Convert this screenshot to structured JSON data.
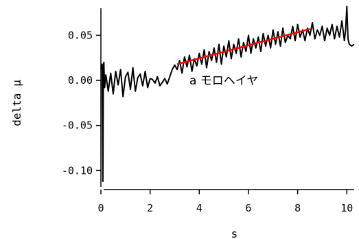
{
  "chart_data": {
    "type": "line",
    "title": "",
    "xlabel": "s",
    "ylabel": "delta μ",
    "xlim": [
      0,
      10.3
    ],
    "ylim": [
      -0.115,
      0.08
    ],
    "x_ticks": [
      0,
      2,
      4,
      6,
      8,
      10
    ],
    "x_tick_labels": [
      "0",
      "2",
      "4",
      "6",
      "8",
      "10"
    ],
    "y_ticks": [
      -0.1,
      -0.05,
      0.0,
      0.05
    ],
    "y_tick_labels": [
      "-0.10",
      "-0.05",
      "0.00",
      "0.05"
    ],
    "grid": false,
    "series": [
      {
        "color": "#000000",
        "x": [
          0.0,
          0.05,
          0.08,
          0.1,
          0.12,
          0.15,
          0.2,
          0.3,
          0.4,
          0.5,
          0.6,
          0.7,
          0.8,
          0.9,
          1.0,
          1.1,
          1.2,
          1.3,
          1.4,
          1.5,
          1.6,
          1.7,
          1.8,
          1.9,
          2.0,
          2.1,
          2.2,
          2.3,
          2.4,
          2.5,
          2.6,
          2.7,
          2.8,
          2.9,
          3.0,
          3.1,
          3.2,
          3.3,
          3.4,
          3.5,
          3.6,
          3.7,
          3.8,
          3.9,
          4.0,
          4.1,
          4.2,
          4.3,
          4.4,
          4.5,
          4.6,
          4.7,
          4.8,
          4.9,
          5.0,
          5.1,
          5.2,
          5.3,
          5.4,
          5.5,
          5.6,
          5.7,
          5.8,
          5.9,
          6.0,
          6.1,
          6.2,
          6.3,
          6.4,
          6.5,
          6.6,
          6.7,
          6.8,
          6.9,
          7.0,
          7.1,
          7.2,
          7.3,
          7.4,
          7.5,
          7.6,
          7.7,
          7.8,
          7.9,
          8.0,
          8.1,
          8.2,
          8.3,
          8.4,
          8.5,
          8.6,
          8.7,
          8.8,
          8.9,
          9.0,
          9.1,
          9.2,
          9.3,
          9.4,
          9.5,
          9.6,
          9.7,
          9.8,
          9.9,
          9.95,
          10.0,
          10.05,
          10.1,
          10.2,
          10.3
        ],
        "values": [
          0.012,
          0.018,
          -0.112,
          0.015,
          0.02,
          -0.008,
          0.006,
          -0.012,
          0.008,
          -0.015,
          0.01,
          -0.005,
          0.012,
          -0.018,
          0.004,
          0.009,
          -0.01,
          0.014,
          -0.012,
          0.003,
          0.007,
          -0.006,
          0.01,
          -0.008,
          0.002,
          0.001,
          -0.003,
          0.004,
          -0.006,
          -0.002,
          0.002,
          -0.004,
          0.004,
          0.012,
          0.017,
          0.012,
          0.022,
          0.008,
          0.026,
          0.015,
          0.028,
          0.01,
          0.024,
          0.016,
          0.03,
          0.018,
          0.034,
          0.014,
          0.032,
          0.022,
          0.036,
          0.02,
          0.04,
          0.018,
          0.038,
          0.026,
          0.044,
          0.024,
          0.04,
          0.03,
          0.046,
          0.026,
          0.042,
          0.032,
          0.05,
          0.03,
          0.046,
          0.036,
          0.048,
          0.032,
          0.052,
          0.038,
          0.05,
          0.036,
          0.056,
          0.04,
          0.054,
          0.038,
          0.058,
          0.042,
          0.05,
          0.046,
          0.06,
          0.044,
          0.062,
          0.048,
          0.056,
          0.044,
          0.058,
          0.05,
          0.064,
          0.046,
          0.056,
          0.05,
          0.06,
          0.044,
          0.058,
          0.05,
          0.062,
          0.046,
          0.06,
          0.048,
          0.066,
          0.044,
          0.056,
          0.082,
          0.046,
          0.04,
          0.038,
          0.04
        ]
      },
      {
        "color": "#ff0000",
        "x": [
          3.1,
          8.5
        ],
        "values": [
          0.018,
          0.057
        ]
      }
    ],
    "annotations": [
      {
        "text": "a モロヘイヤ",
        "x": 3.6,
        "y": 0.0
      }
    ]
  }
}
